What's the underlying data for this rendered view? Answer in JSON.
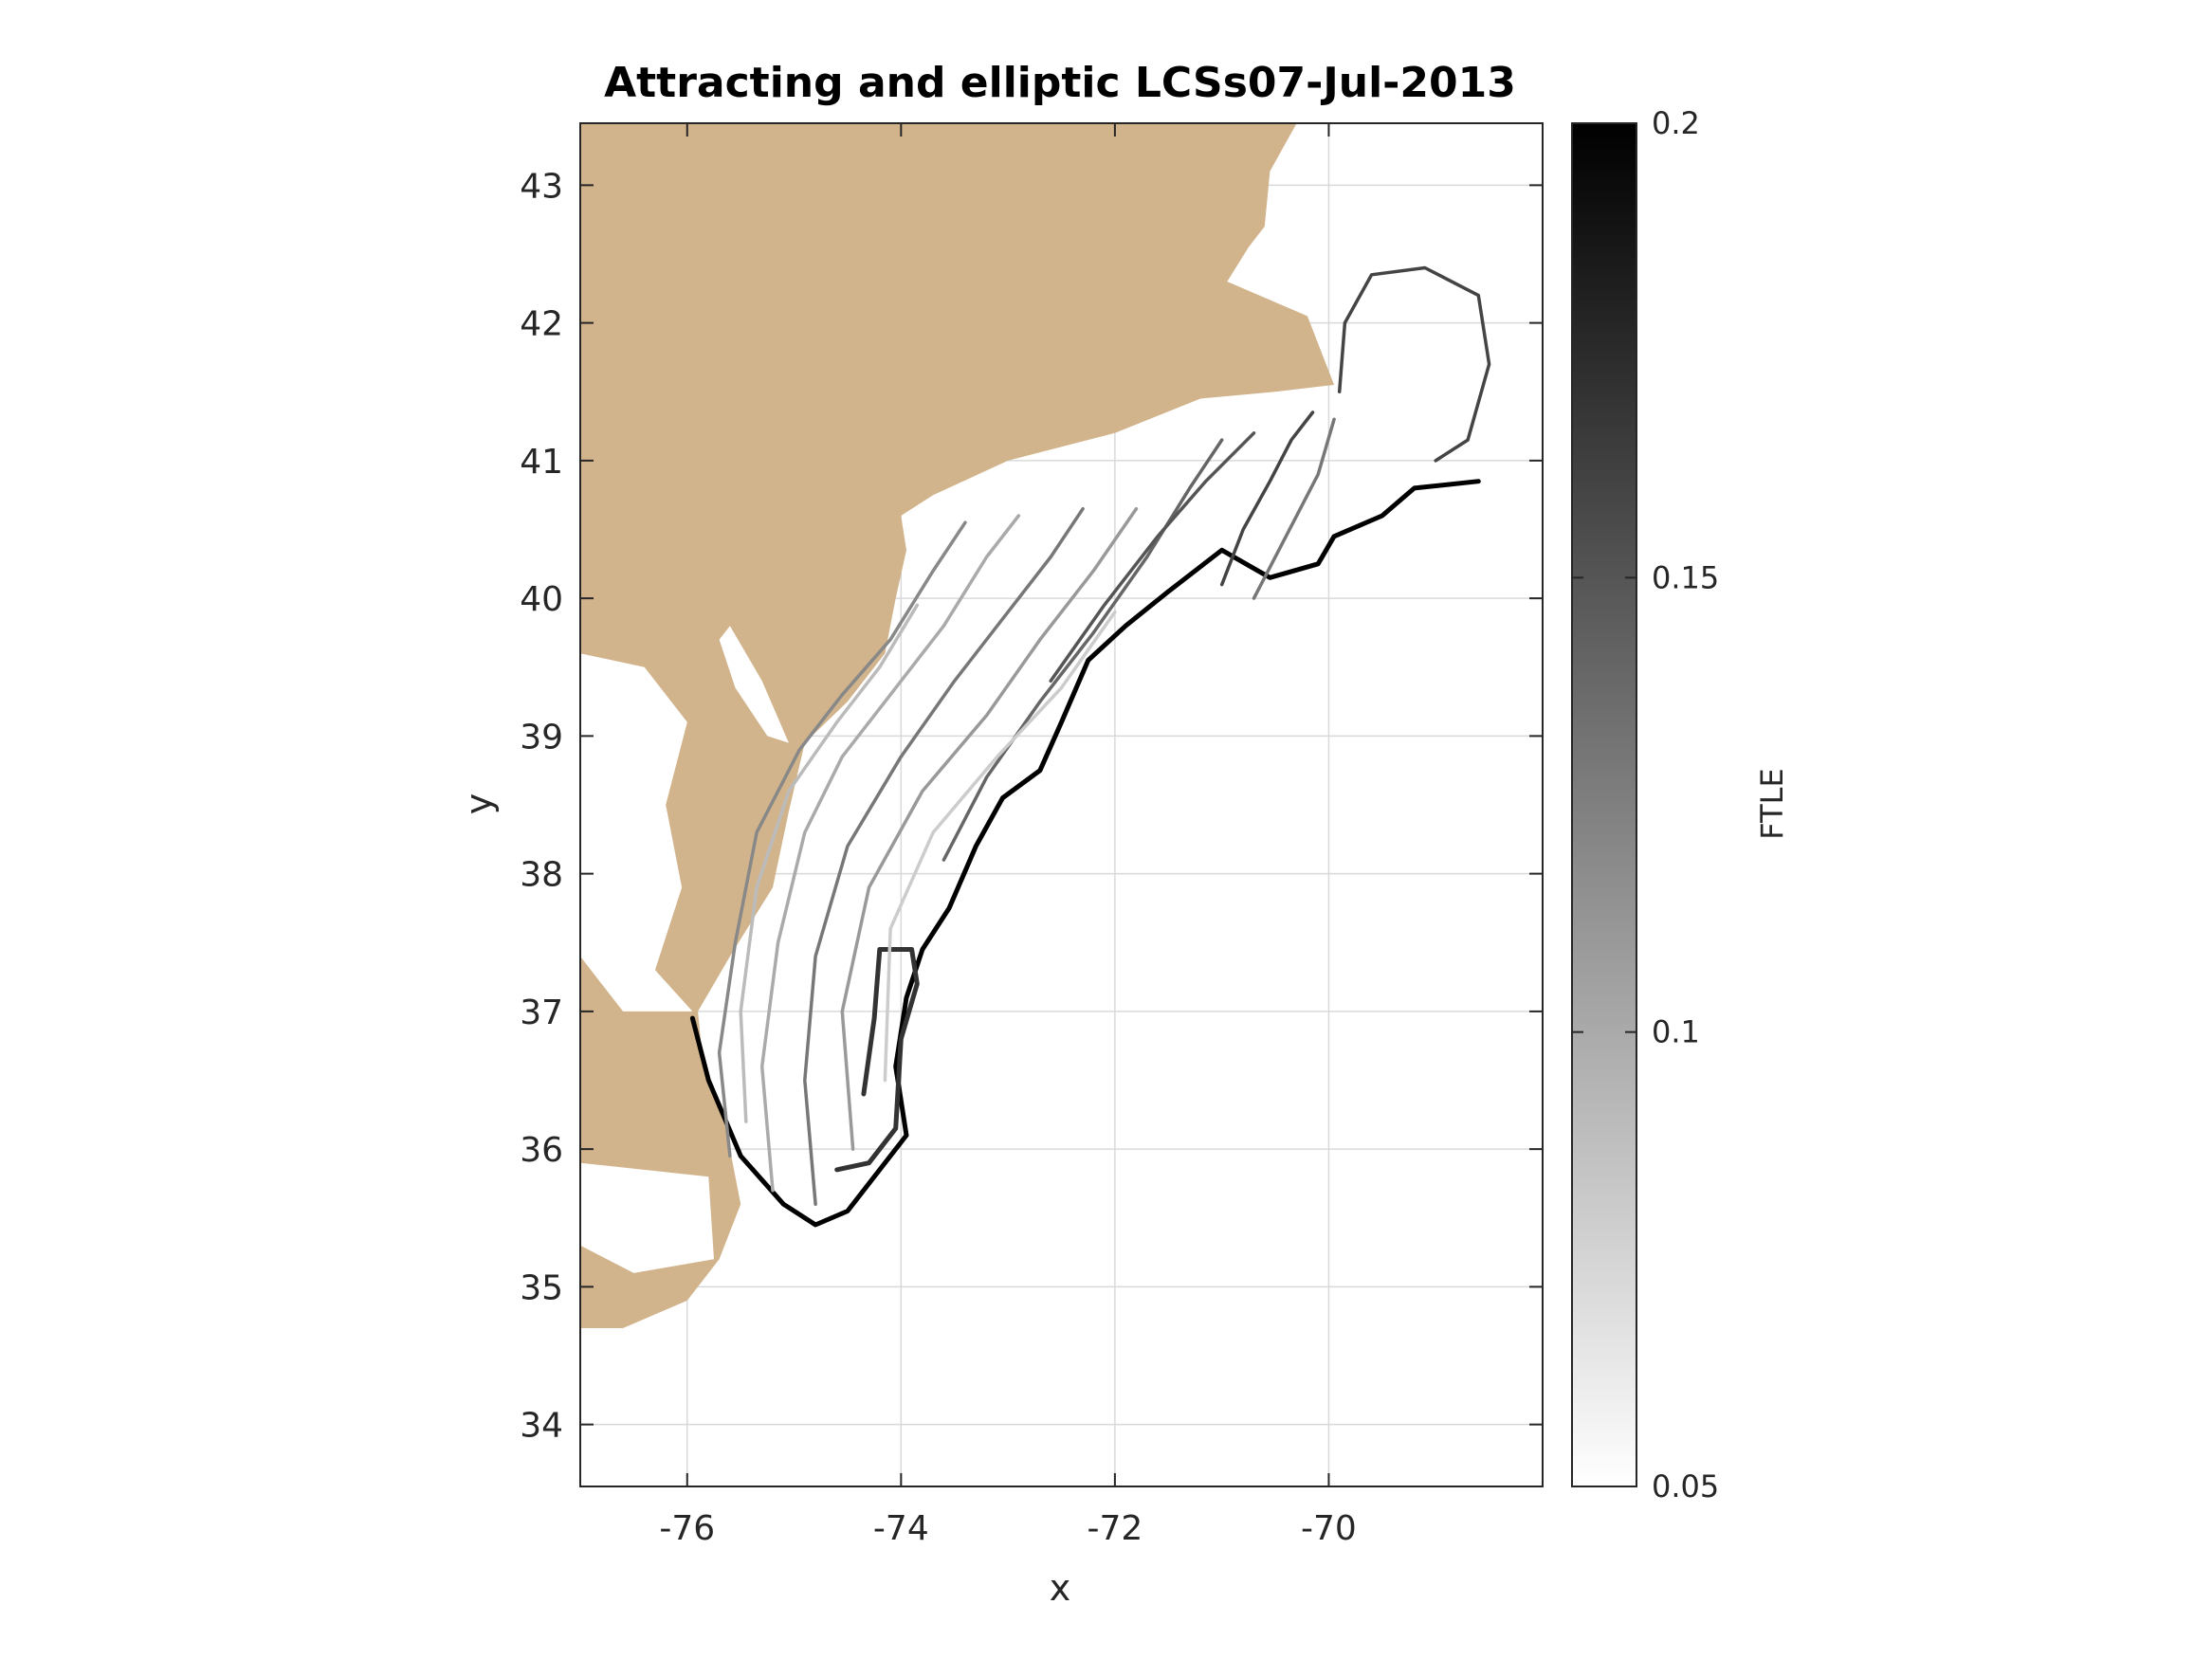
{
  "chart_data": {
    "type": "heatmap",
    "title": "Attracting and elliptic LCSs07-Jul-2013",
    "xlabel": "x",
    "ylabel": "y",
    "xlim": [
      -77,
      -68.0
    ],
    "ylim": [
      33.55,
      43.45
    ],
    "x_ticks": [
      -76,
      -74,
      -72,
      -70
    ],
    "x_tick_labels": [
      "-76",
      "-74",
      "-72",
      "-70"
    ],
    "y_ticks": [
      34,
      35,
      36,
      37,
      38,
      39,
      40,
      41,
      42,
      43
    ],
    "y_tick_labels": [
      "34",
      "35",
      "36",
      "37",
      "38",
      "39",
      "40",
      "41",
      "42",
      "43"
    ],
    "grid": true,
    "colorbar": {
      "label": "FTLE",
      "range": [
        0.05,
        0.2
      ],
      "ticks": [
        0.05,
        0.1,
        0.15,
        0.2
      ],
      "tick_labels": [
        "0.05",
        "0.1",
        "0.15",
        "0.2"
      ],
      "colormap": "gray-reversed"
    },
    "colors": {
      "land": "#d2b48c",
      "lcs_dark": "#1a1a1a",
      "grid": "#d9d9d9",
      "axes": "#262626"
    },
    "land_polygon": [
      [
        -77,
        43.45
      ],
      [
        -70.3,
        43.45
      ],
      [
        -70.55,
        43.1
      ],
      [
        -70.6,
        42.7
      ],
      [
        -70.75,
        42.55
      ],
      [
        -70.95,
        42.3
      ],
      [
        -70.2,
        42.05
      ],
      [
        -70.05,
        41.75
      ],
      [
        -69.95,
        41.55
      ],
      [
        -70.5,
        41.5
      ],
      [
        -71.2,
        41.45
      ],
      [
        -72.0,
        41.2
      ],
      [
        -73.0,
        41.0
      ],
      [
        -73.7,
        40.75
      ],
      [
        -74.0,
        40.6
      ],
      [
        -73.95,
        40.35
      ],
      [
        -74.05,
        40.0
      ],
      [
        -74.15,
        39.6
      ],
      [
        -74.5,
        39.25
      ],
      [
        -74.9,
        38.95
      ],
      [
        -75.05,
        38.45
      ],
      [
        -75.2,
        37.9
      ],
      [
        -75.6,
        37.4
      ],
      [
        -75.9,
        37.0
      ],
      [
        -75.85,
        36.6
      ],
      [
        -75.65,
        36.2
      ],
      [
        -75.5,
        35.6
      ],
      [
        -75.7,
        35.2
      ],
      [
        -76.0,
        34.9
      ],
      [
        -76.6,
        34.7
      ],
      [
        -77,
        34.7
      ]
    ],
    "water_inlets": [
      {
        "name": "chesapeake",
        "points": [
          [
            -77,
            39.6
          ],
          [
            -76.4,
            39.5
          ],
          [
            -76.0,
            39.1
          ],
          [
            -76.2,
            38.5
          ],
          [
            -76.05,
            37.9
          ],
          [
            -76.3,
            37.3
          ],
          [
            -75.95,
            37.0
          ],
          [
            -76.6,
            37.0
          ],
          [
            -77,
            37.4
          ]
        ]
      },
      {
        "name": "delaware",
        "points": [
          [
            -75.6,
            39.8
          ],
          [
            -75.3,
            39.4
          ],
          [
            -75.05,
            38.95
          ],
          [
            -75.25,
            39.0
          ],
          [
            -75.55,
            39.35
          ],
          [
            -75.7,
            39.7
          ]
        ]
      },
      {
        "name": "pamlico",
        "points": [
          [
            -77,
            35.9
          ],
          [
            -75.8,
            35.8
          ],
          [
            -75.75,
            35.2
          ],
          [
            -76.5,
            35.1
          ],
          [
            -77,
            35.3
          ]
        ]
      }
    ],
    "lcs_curves": [
      {
        "name": "outer-attracting",
        "ftle": 0.2,
        "points": [
          [
            -75.95,
            36.95
          ],
          [
            -75.8,
            36.5
          ],
          [
            -75.5,
            35.95
          ],
          [
            -75.1,
            35.6
          ],
          [
            -74.8,
            35.45
          ],
          [
            -74.5,
            35.55
          ],
          [
            -74.2,
            35.85
          ],
          [
            -73.95,
            36.1
          ],
          [
            -74.05,
            36.6
          ],
          [
            -73.95,
            37.1
          ],
          [
            -73.8,
            37.45
          ],
          [
            -73.55,
            37.75
          ],
          [
            -73.3,
            38.2
          ],
          [
            -73.05,
            38.55
          ],
          [
            -72.7,
            38.75
          ],
          [
            -72.5,
            39.1
          ],
          [
            -72.25,
            39.55
          ],
          [
            -71.9,
            39.8
          ],
          [
            -71.5,
            40.05
          ],
          [
            -71.0,
            40.35
          ],
          [
            -70.55,
            40.15
          ],
          [
            -70.1,
            40.25
          ],
          [
            -69.95,
            40.45
          ],
          [
            -69.5,
            40.6
          ],
          [
            -69.2,
            40.8
          ],
          [
            -68.6,
            40.85
          ]
        ]
      },
      {
        "name": "elliptic-ring",
        "ftle": 0.16,
        "points": [
          [
            -69.9,
            41.5
          ],
          [
            -69.85,
            42.0
          ],
          [
            -69.6,
            42.35
          ],
          [
            -69.1,
            42.4
          ],
          [
            -68.6,
            42.2
          ],
          [
            -68.5,
            41.7
          ],
          [
            -68.7,
            41.15
          ],
          [
            -69.0,
            41.0
          ]
        ]
      },
      {
        "name": "inner-loop-south",
        "ftle": 0.17,
        "points": [
          [
            -74.6,
            35.85
          ],
          [
            -74.3,
            35.9
          ],
          [
            -74.05,
            36.15
          ],
          [
            -74.0,
            36.8
          ],
          [
            -73.85,
            37.2
          ],
          [
            -73.9,
            37.45
          ],
          [
            -74.2,
            37.45
          ],
          [
            -74.25,
            36.95
          ],
          [
            -74.35,
            36.4
          ]
        ]
      },
      {
        "name": "band-1",
        "ftle": 0.12,
        "points": [
          [
            -75.6,
            35.95
          ],
          [
            -75.7,
            36.7
          ],
          [
            -75.55,
            37.5
          ],
          [
            -75.35,
            38.3
          ],
          [
            -74.95,
            38.9
          ],
          [
            -74.55,
            39.3
          ],
          [
            -74.1,
            39.7
          ],
          [
            -73.7,
            40.2
          ],
          [
            -73.4,
            40.55
          ]
        ]
      },
      {
        "name": "band-2",
        "ftle": 0.1,
        "points": [
          [
            -75.2,
            35.7
          ],
          [
            -75.3,
            36.6
          ],
          [
            -75.15,
            37.5
          ],
          [
            -74.9,
            38.3
          ],
          [
            -74.55,
            38.85
          ],
          [
            -74.1,
            39.3
          ],
          [
            -73.6,
            39.8
          ],
          [
            -73.2,
            40.3
          ],
          [
            -72.9,
            40.6
          ]
        ]
      },
      {
        "name": "band-3",
        "ftle": 0.13,
        "points": [
          [
            -74.8,
            35.6
          ],
          [
            -74.9,
            36.5
          ],
          [
            -74.8,
            37.4
          ],
          [
            -74.5,
            38.2
          ],
          [
            -74.0,
            38.85
          ],
          [
            -73.5,
            39.4
          ],
          [
            -73.0,
            39.9
          ],
          [
            -72.6,
            40.3
          ],
          [
            -72.3,
            40.65
          ]
        ]
      },
      {
        "name": "band-4",
        "ftle": 0.11,
        "points": [
          [
            -74.45,
            36.0
          ],
          [
            -74.55,
            37.0
          ],
          [
            -74.3,
            37.9
          ],
          [
            -73.8,
            38.6
          ],
          [
            -73.2,
            39.15
          ],
          [
            -72.7,
            39.7
          ],
          [
            -72.2,
            40.2
          ],
          [
            -71.8,
            40.65
          ]
        ]
      },
      {
        "name": "band-5",
        "ftle": 0.14,
        "points": [
          [
            -73.6,
            38.1
          ],
          [
            -73.2,
            38.7
          ],
          [
            -72.7,
            39.25
          ],
          [
            -72.2,
            39.75
          ],
          [
            -71.7,
            40.3
          ],
          [
            -71.3,
            40.8
          ],
          [
            -71.0,
            41.15
          ]
        ]
      },
      {
        "name": "band-6",
        "ftle": 0.15,
        "points": [
          [
            -72.6,
            39.4
          ],
          [
            -72.1,
            39.95
          ],
          [
            -71.6,
            40.45
          ],
          [
            -71.15,
            40.85
          ],
          [
            -70.7,
            41.2
          ]
        ]
      },
      {
        "name": "band-7",
        "ftle": 0.16,
        "points": [
          [
            -71.0,
            40.1
          ],
          [
            -70.8,
            40.5
          ],
          [
            -70.55,
            40.85
          ],
          [
            -70.35,
            41.15
          ],
          [
            -70.15,
            41.35
          ]
        ]
      },
      {
        "name": "band-8",
        "ftle": 0.13,
        "points": [
          [
            -70.7,
            40.0
          ],
          [
            -70.4,
            40.45
          ],
          [
            -70.1,
            40.9
          ],
          [
            -69.95,
            41.3
          ]
        ]
      },
      {
        "name": "band-9",
        "ftle": 0.09,
        "points": [
          [
            -75.45,
            36.2
          ],
          [
            -75.5,
            37.0
          ],
          [
            -75.35,
            37.9
          ],
          [
            -75.05,
            38.6
          ],
          [
            -74.6,
            39.1
          ],
          [
            -74.2,
            39.5
          ],
          [
            -73.85,
            39.95
          ]
        ]
      },
      {
        "name": "band-10",
        "ftle": 0.08,
        "points": [
          [
            -74.15,
            36.5
          ],
          [
            -74.1,
            37.6
          ],
          [
            -73.7,
            38.3
          ],
          [
            -73.1,
            38.85
          ],
          [
            -72.5,
            39.35
          ],
          [
            -72.0,
            39.9
          ]
        ]
      }
    ]
  }
}
